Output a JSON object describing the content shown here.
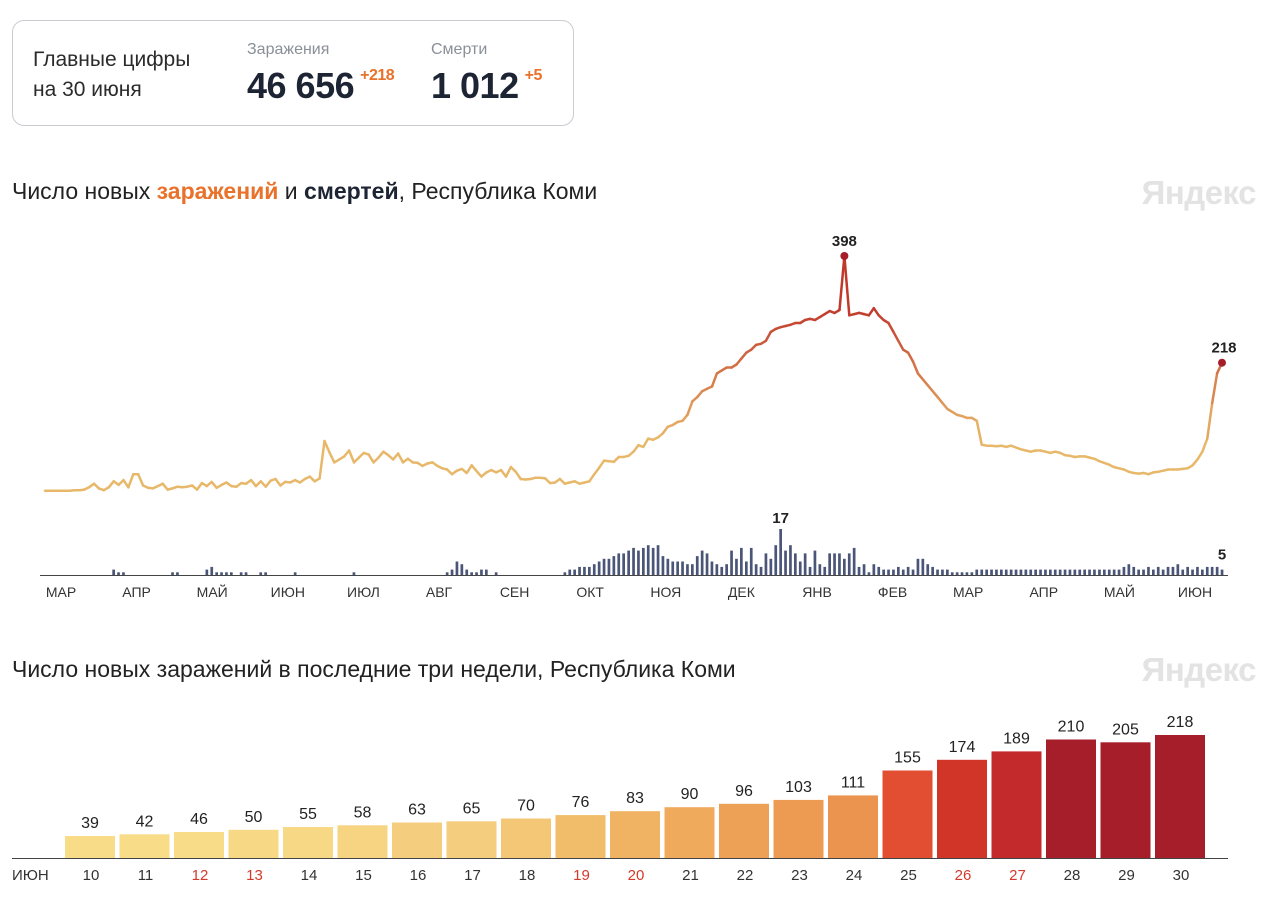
{
  "summary": {
    "label": "Главные цифры\nна 30 июня",
    "cases": {
      "name": "Заражения",
      "value": "46 656",
      "delta": "+218"
    },
    "deaths": {
      "name": "Смерти",
      "value": "1 012",
      "delta": "+5"
    }
  },
  "chart1": {
    "title_prefix": "Число новых ",
    "title_cases": "заражений",
    "title_and": " и ",
    "title_deaths": "смертей",
    "title_suffix": ", Республика Коми",
    "logo": "Яндекс"
  },
  "chart2": {
    "title": "Число новых заражений в последние три недели, Республика Коми",
    "logo": "Яндекс"
  },
  "colors": {
    "line_low": "#e8b86a",
    "line_high": "#c0392b",
    "death_bars": "#4a5578",
    "peak_dot": "#a51e2a",
    "weekend_label": "#d23b2b"
  },
  "chart_data": [
    {
      "type": "line",
      "series": [
        {
          "name": "заражений",
          "values": [
            2,
            2,
            2,
            2,
            2,
            2,
            3,
            3,
            4,
            8,
            14,
            6,
            3,
            8,
            18,
            12,
            20,
            8,
            30,
            30,
            11,
            7,
            6,
            10,
            14,
            4,
            6,
            9,
            8,
            9,
            11,
            4,
            15,
            10,
            17,
            7,
            12,
            16,
            10,
            9,
            15,
            14,
            20,
            10,
            18,
            9,
            19,
            22,
            11,
            17,
            16,
            20,
            16,
            22,
            26,
            18,
            23,
            86,
            67,
            50,
            55,
            60,
            70,
            50,
            58,
            66,
            63,
            50,
            58,
            68,
            62,
            55,
            65,
            50,
            56,
            50,
            49,
            44,
            48,
            50,
            44,
            40,
            38,
            30,
            36,
            39,
            32,
            45,
            35,
            26,
            33,
            37,
            33,
            37,
            26,
            42,
            34,
            22,
            21,
            22,
            24,
            24,
            23,
            15,
            16,
            22,
            14,
            16,
            18,
            14,
            16,
            18,
            30,
            41,
            53,
            52,
            51,
            59,
            59,
            61,
            68,
            79,
            76,
            90,
            88,
            92,
            99,
            110,
            113,
            118,
            120,
            130,
            153,
            160,
            170,
            174,
            178,
            200,
            205,
            210,
            210,
            215,
            225,
            235,
            240,
            248,
            250,
            255,
            270,
            275,
            278,
            280,
            282,
            285,
            285,
            290,
            292,
            290,
            295,
            300,
            305,
            302,
            307,
            398,
            298,
            300,
            302,
            300,
            298,
            310,
            298,
            290,
            285,
            270,
            255,
            240,
            235,
            220,
            200,
            190,
            180,
            170,
            160,
            150,
            140,
            135,
            130,
            128,
            125,
            125,
            120,
            80,
            78,
            78,
            77,
            78,
            76,
            78,
            75,
            72,
            70,
            68,
            70,
            70,
            68,
            66,
            68,
            66,
            62,
            61,
            59,
            60,
            60,
            58,
            56,
            52,
            49,
            46,
            42,
            40,
            38,
            34,
            32,
            31,
            32,
            30,
            33,
            34,
            36,
            38,
            38,
            38,
            39,
            40,
            45,
            55,
            68,
            90,
            150,
            200,
            218
          ]
        },
        {
          "name": "смертей",
          "values": [
            0,
            0,
            0,
            0,
            0,
            0,
            0,
            0,
            0,
            0,
            0,
            0,
            0,
            0,
            2,
            1,
            1,
            0,
            0,
            0,
            0,
            0,
            0,
            0,
            0,
            0,
            1,
            1,
            0,
            0,
            0,
            0,
            0,
            2,
            3,
            1,
            1,
            1,
            1,
            0,
            1,
            1,
            0,
            0,
            1,
            1,
            0,
            0,
            0,
            0,
            0,
            1,
            0,
            0,
            0,
            0,
            0,
            0,
            0,
            0,
            0,
            0,
            0,
            1,
            0,
            0,
            0,
            0,
            0,
            0,
            0,
            0,
            0,
            0,
            0,
            0,
            0,
            0,
            0,
            0,
            0,
            0,
            1,
            2,
            5,
            4,
            2,
            1,
            1,
            2,
            2,
            0,
            1,
            0,
            0,
            0,
            0,
            0,
            0,
            0,
            0,
            0,
            0,
            0,
            0,
            0,
            1,
            2,
            2,
            3,
            3,
            3,
            4,
            5,
            6,
            6,
            7,
            8,
            8,
            9,
            10,
            9,
            10,
            11,
            10,
            11,
            7,
            6,
            5,
            5,
            5,
            4,
            4,
            7,
            9,
            8,
            5,
            4,
            3,
            4,
            9,
            6,
            10,
            5,
            10,
            4,
            3,
            8,
            6,
            11,
            17,
            9,
            11,
            8,
            5,
            8,
            3,
            9,
            4,
            3,
            8,
            8,
            8,
            6,
            8,
            10,
            3,
            4,
            1,
            4,
            3,
            2,
            2,
            2,
            3,
            2,
            3,
            2,
            6,
            6,
            4,
            3,
            2,
            2,
            2,
            1,
            1,
            1,
            1,
            1,
            2,
            2,
            2,
            2,
            2,
            2,
            2,
            2,
            2,
            2,
            2,
            2,
            2,
            2,
            2,
            2,
            2,
            2,
            2,
            2,
            2,
            2,
            2,
            2,
            2,
            2,
            2,
            2,
            2,
            2,
            3,
            4,
            3,
            2,
            2,
            3,
            2,
            3,
            2,
            3,
            3,
            4,
            2,
            3,
            2,
            3,
            2,
            3,
            3,
            3,
            2,
            2,
            3,
            3,
            3,
            2,
            3,
            2,
            3,
            3,
            2,
            2,
            3,
            3,
            4,
            5
          ]
        }
      ],
      "annotations": [
        {
          "series": "заражений",
          "label": "398"
        },
        {
          "series": "заражений",
          "label": "218"
        },
        {
          "series": "смертей",
          "label": "17"
        },
        {
          "series": "смертей",
          "label": "5"
        }
      ],
      "x_tick_labels": [
        "МАР",
        "АПР",
        "МАЙ",
        "ИЮН",
        "ИЮЛ",
        "АВГ",
        "СЕН",
        "ОКТ",
        "НОЯ",
        "ДЕК",
        "ЯНВ",
        "ФЕВ",
        "МАР",
        "АПР",
        "МАЙ",
        "ИЮН"
      ],
      "grid": false
    },
    {
      "type": "bar",
      "title": "Число новых заражений в последние три недели, Республика Коми",
      "month_label": "ИЮН",
      "categories": [
        "10",
        "11",
        "12",
        "13",
        "14",
        "15",
        "16",
        "17",
        "18",
        "19",
        "20",
        "21",
        "22",
        "23",
        "24",
        "25",
        "26",
        "27",
        "28",
        "29",
        "30"
      ],
      "weekend": [
        false,
        false,
        true,
        true,
        false,
        false,
        false,
        false,
        false,
        true,
        true,
        false,
        false,
        false,
        false,
        false,
        true,
        true,
        false,
        false,
        false
      ],
      "values": [
        39,
        42,
        46,
        50,
        55,
        58,
        63,
        65,
        70,
        76,
        83,
        90,
        96,
        103,
        111,
        155,
        174,
        189,
        210,
        205,
        218
      ],
      "bar_colors": [
        "#f8dc88",
        "#f8dc88",
        "#f8dc88",
        "#f7d985",
        "#f7d985",
        "#f6d482",
        "#f4ce7e",
        "#f4ce7e",
        "#f3c775",
        "#f1bd6a",
        "#f0b263",
        "#efaa5c",
        "#eda156",
        "#ed9b52",
        "#eb944f",
        "#e14e32",
        "#d13528",
        "#c32a2b",
        "#a51e2a",
        "#a51e2a",
        "#a51e2a"
      ],
      "ylim": [
        0,
        230
      ],
      "grid": false
    }
  ]
}
